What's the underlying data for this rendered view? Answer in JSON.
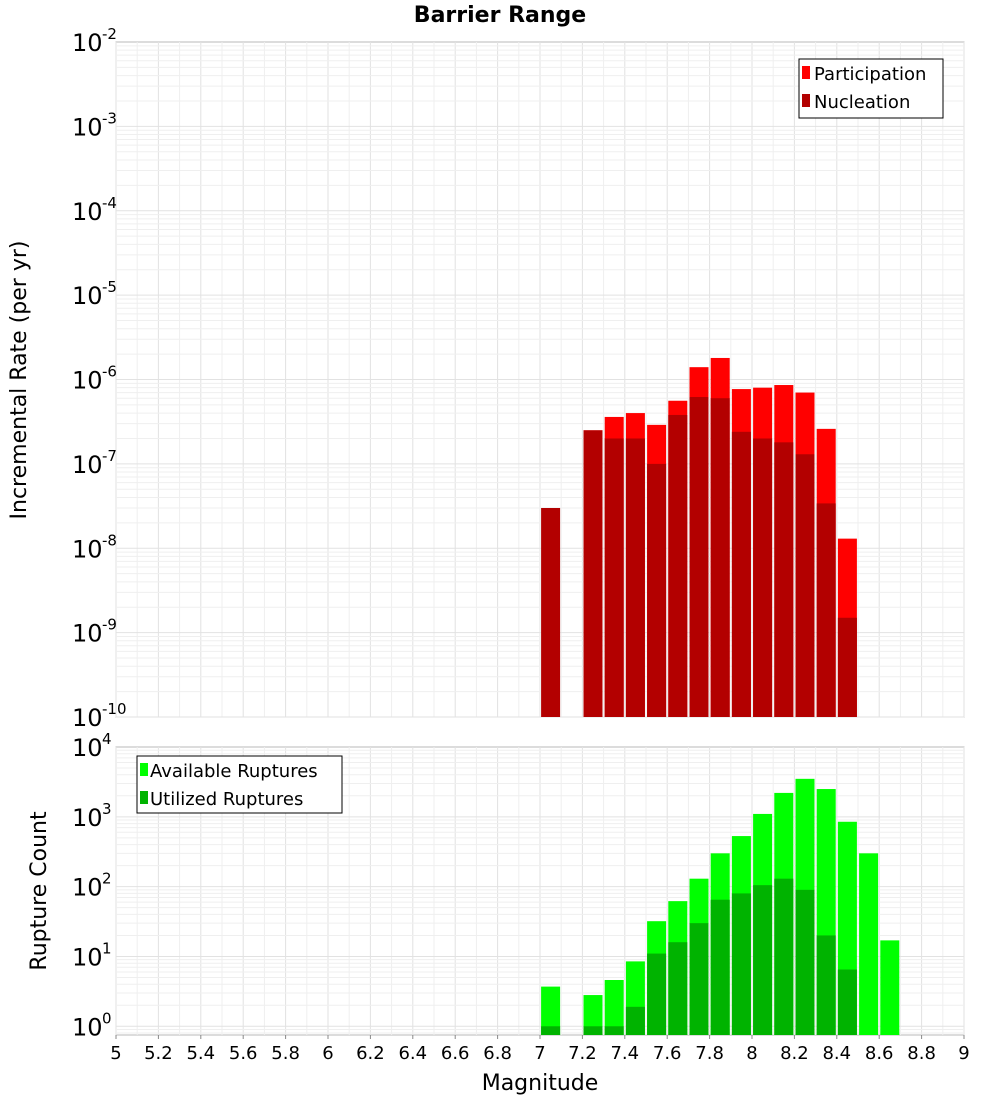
{
  "chart_data": [
    {
      "id": "rate",
      "type": "bar",
      "title": "Barrier Range",
      "xlabel": "",
      "ylabel": "Incremental Rate (per yr)",
      "yscale": "log",
      "ylim": [
        1e-10,
        0.01
      ],
      "xlim": [
        5,
        9
      ],
      "ytick_exponents": [
        "-10",
        "-9",
        "-8",
        "-7",
        "-6",
        "-5",
        "-4",
        "-3",
        "-2"
      ],
      "ytick_base": "10",
      "grid": true,
      "legend_position": "top-right",
      "series": [
        {
          "name": "Participation",
          "color": "#ff0000",
          "x": [
            7.25,
            7.35,
            7.45,
            7.55,
            7.65,
            7.75,
            7.85,
            7.95,
            8.05,
            8.15,
            8.25,
            8.35,
            8.45
          ],
          "values": [
            2.5e-07,
            3.6e-07,
            4e-07,
            2.9e-07,
            5.6e-07,
            1.4e-06,
            1.8e-06,
            7.7e-07,
            8e-07,
            8.6e-07,
            7e-07,
            2.6e-07,
            1.3e-08
          ]
        },
        {
          "name": "Nucleation",
          "color": "#b30000",
          "x": [
            7.05,
            7.25,
            7.35,
            7.45,
            7.55,
            7.65,
            7.75,
            7.85,
            7.95,
            8.05,
            8.15,
            8.25,
            8.35,
            8.45
          ],
          "values": [
            3e-08,
            2.5e-07,
            2e-07,
            2e-07,
            1e-07,
            3.8e-07,
            6.2e-07,
            6e-07,
            2.4e-07,
            2e-07,
            1.8e-07,
            1.3e-07,
            3.4e-08,
            1.5e-09
          ]
        }
      ]
    },
    {
      "id": "count",
      "type": "bar",
      "title": "",
      "xlabel": "Magnitude",
      "ylabel": "Rupture Count",
      "yscale": "log",
      "ylim": [
        0.75,
        10000
      ],
      "xlim": [
        5,
        9
      ],
      "ytick_exponents": [
        "0",
        "1",
        "2",
        "3",
        "4"
      ],
      "ytick_base": "10",
      "xticks": [
        "5",
        "5.2",
        "5.4",
        "5.6",
        "5.8",
        "6",
        "6.2",
        "6.4",
        "6.6",
        "6.8",
        "7",
        "7.2",
        "7.4",
        "7.6",
        "7.8",
        "8",
        "8.2",
        "8.4",
        "8.6",
        "8.8",
        "9"
      ],
      "grid": true,
      "legend_position": "top-left",
      "series": [
        {
          "name": "Available Ruptures",
          "color": "#00ff00",
          "x": [
            7.05,
            7.25,
            7.35,
            7.45,
            7.55,
            7.65,
            7.75,
            7.85,
            7.95,
            8.05,
            8.15,
            8.25,
            8.35,
            8.45,
            8.55,
            8.65
          ],
          "values": [
            3.7,
            2.8,
            4.6,
            8.5,
            32,
            62,
            130,
            300,
            530,
            1100,
            2200,
            3500,
            2500,
            850,
            300,
            17
          ]
        },
        {
          "name": "Utilized Ruptures",
          "color": "#00b300",
          "x": [
            7.05,
            7.25,
            7.35,
            7.45,
            7.55,
            7.65,
            7.75,
            7.85,
            7.95,
            8.05,
            8.15,
            8.25,
            8.35,
            8.45
          ],
          "values": [
            1,
            1,
            1,
            1.9,
            11,
            16,
            30,
            65,
            80,
            105,
            130,
            90,
            20,
            6.5
          ]
        }
      ]
    }
  ]
}
